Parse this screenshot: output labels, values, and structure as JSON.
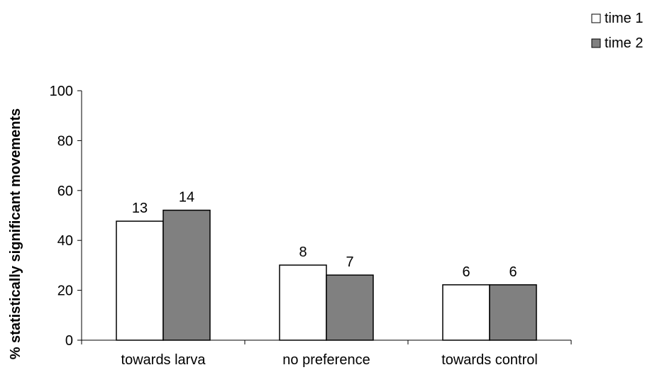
{
  "chart_data": {
    "type": "bar",
    "title": "",
    "xlabel": "",
    "ylabel": "% statistically significant movements",
    "ylim": [
      0,
      100
    ],
    "yticks": [
      0,
      20,
      40,
      60,
      80,
      100
    ],
    "grid": false,
    "legend_position": "top-right",
    "categories": [
      "towards larva",
      "no preference",
      "towards control"
    ],
    "series": [
      {
        "name": "time 1",
        "color": "#ffffff",
        "values": [
          47.7,
          30.1,
          22.2
        ],
        "labels": [
          "13",
          "8",
          "6"
        ]
      },
      {
        "name": "time 2",
        "color": "#808080",
        "values": [
          52.1,
          26.1,
          22.2
        ],
        "labels": [
          "14",
          "7",
          "6"
        ]
      }
    ]
  }
}
